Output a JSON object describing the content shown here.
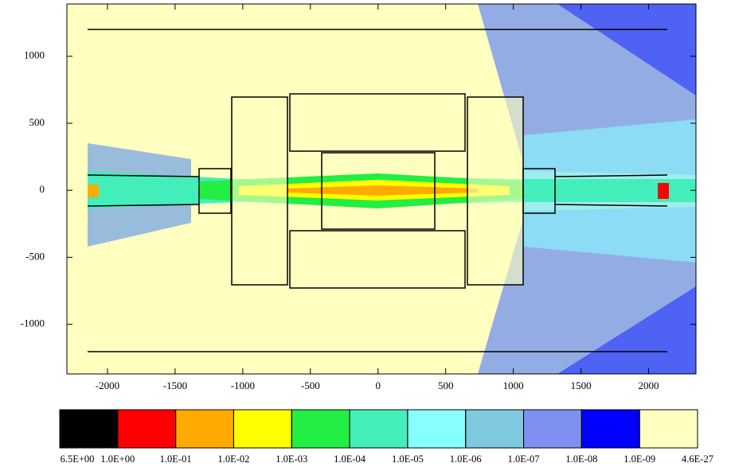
{
  "chart_data": {
    "type": "heatmap",
    "xlim": [
      -2300,
      2350
    ],
    "ylim": [
      -1370,
      1390
    ],
    "xticks": [
      -2000,
      -1500,
      -1000,
      -500,
      0,
      500,
      1000,
      1500,
      2000
    ],
    "yticks": [
      -1000,
      -500,
      0,
      500,
      1000
    ],
    "colorbar": {
      "colors": [
        "#000000",
        "#ff0000",
        "#ffaa00",
        "#ffff00",
        "#22ee44",
        "#44eebb",
        "#88ffff",
        "#7ec8e0",
        "#8090f0",
        "#0000ff",
        "#ffffc0"
      ],
      "ticks": [
        {
          "value": 6.5,
          "label": "6.5E+00"
        },
        {
          "value": 1.0,
          "label": "1.0E+00"
        },
        {
          "value": 0.1,
          "label": "1.0E-01"
        },
        {
          "value": 0.01,
          "label": "1.0E-02"
        },
        {
          "value": 0.001,
          "label": "1.0E-03"
        },
        {
          "value": 0.0001,
          "label": "1.0E-04"
        },
        {
          "value": 1e-05,
          "label": "1.0E-05"
        },
        {
          "value": 1e-06,
          "label": "1.0E-06"
        },
        {
          "value": 1e-07,
          "label": "1.0E-07"
        },
        {
          "value": 1e-08,
          "label": "1.0E-08"
        },
        {
          "value": 1e-09,
          "label": "1.0E-09"
        },
        {
          "value": 4.6e-27,
          "label": "4.6E-27"
        }
      ]
    }
  }
}
